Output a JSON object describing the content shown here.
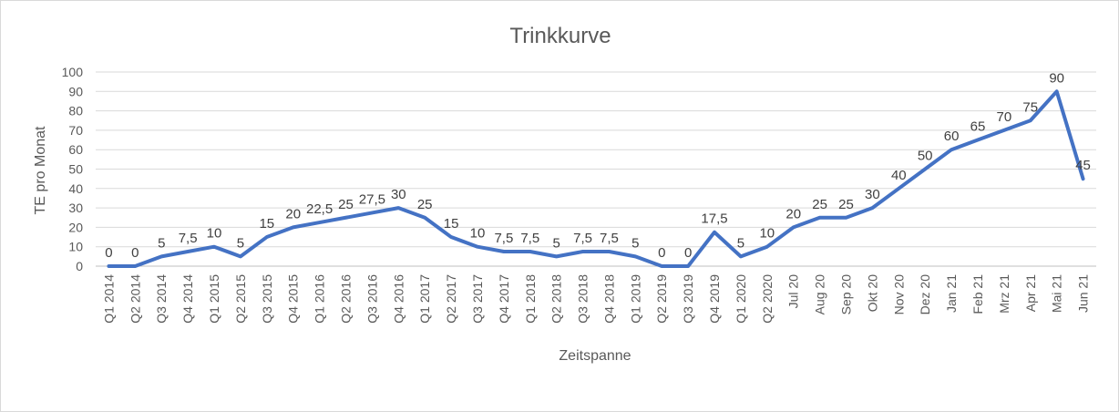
{
  "chart_data": {
    "type": "line",
    "title": "Trinkkurve",
    "xlabel": "Zeitspanne",
    "ylabel": "TE pro Monat",
    "ylim": [
      0,
      100
    ],
    "yticks": [
      0,
      10,
      20,
      30,
      40,
      50,
      60,
      70,
      80,
      90,
      100
    ],
    "grid": true,
    "color": "#4472C4",
    "categories": [
      "Q1 2014",
      "Q2 2014",
      "Q3 2014",
      "Q4 2014",
      "Q1 2015",
      "Q2 2015",
      "Q3 2015",
      "Q4 2015",
      "Q1 2016",
      "Q2 2016",
      "Q3 2016",
      "Q4 2016",
      "Q1 2017",
      "Q2 2017",
      "Q3 2017",
      "Q4 2017",
      "Q1 2018",
      "Q2 2018",
      "Q3 2018",
      "Q4 2018",
      "Q1 2019",
      "Q2 2019",
      "Q3 2019",
      "Q4 2019",
      "Q1 2020",
      "Q2 2020",
      "Jul 20",
      "Aug 20",
      "Sep 20",
      "Okt 20",
      "Nov 20",
      "Dez 20",
      "Jan 21",
      "Feb 21",
      "Mrz 21",
      "Apr 21",
      "Mai 21",
      "Jun 21"
    ],
    "values": [
      0,
      0,
      5,
      7.5,
      10,
      5,
      15,
      20,
      22.5,
      25,
      27.5,
      30,
      25,
      15,
      10,
      7.5,
      7.5,
      5,
      7.5,
      7.5,
      5,
      0,
      0,
      17.5,
      5,
      10,
      20,
      25,
      25,
      30,
      40,
      50,
      60,
      65,
      70,
      75,
      90,
      45
    ],
    "data_labels": [
      "0",
      "0",
      "5",
      "7,5",
      "10",
      "5",
      "15",
      "20",
      "22,5",
      "25",
      "27,5",
      "30",
      "25",
      "15",
      "10",
      "7,5",
      "7,5",
      "5",
      "7,5",
      "7,5",
      "5",
      "0",
      "0",
      "17,5",
      "5",
      "10",
      "20",
      "25",
      "25",
      "30",
      "40",
      "50",
      "60",
      "65",
      "70",
      "75",
      "90",
      "45"
    ]
  }
}
